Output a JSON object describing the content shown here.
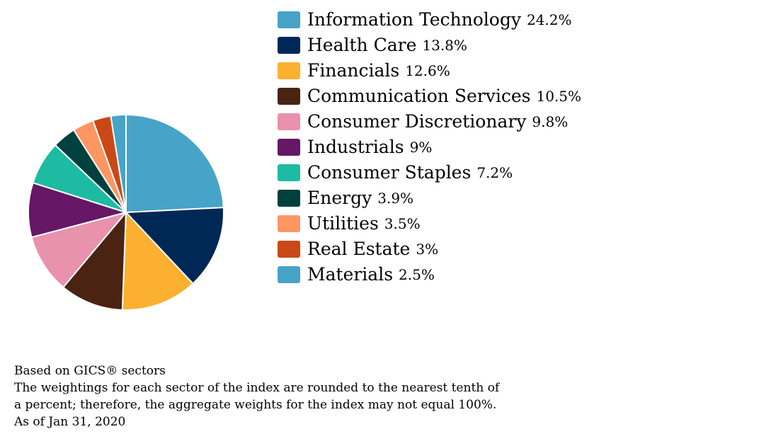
{
  "chart_data": {
    "type": "pie",
    "title": "",
    "categories": [
      "Information Technology",
      "Health Care",
      "Financials",
      "Communication Services",
      "Consumer Discretionary",
      "Industrials",
      "Consumer Staples",
      "Energy",
      "Utilities",
      "Real Estate",
      "Materials"
    ],
    "values": [
      24.2,
      13.8,
      12.6,
      10.5,
      9.8,
      9,
      7.2,
      3.9,
      3.5,
      3,
      2.5
    ],
    "value_labels": [
      "24.2%",
      "13.8%",
      "12.6%",
      "10.5%",
      "9.8%",
      "9%",
      "7.2%",
      "3.9%",
      "3.5%",
      "3%",
      "2.5%"
    ],
    "colors": [
      "#47a3c7",
      "#002856",
      "#fbb12f",
      "#4b2313",
      "#e992ae",
      "#661766",
      "#1ebba3",
      "#00403f",
      "#fd9663",
      "#ca4815",
      "#47a3c7"
    ],
    "legend_position": "right"
  },
  "footnote": {
    "line1": "Based on GICS® sectors",
    "line2": "The weightings for each sector of the index are rounded to the nearest tenth of",
    "line3": "a percent; therefore, the aggregate weights for the index may not equal 100%.",
    "line4": "As of Jan 31, 2020"
  }
}
